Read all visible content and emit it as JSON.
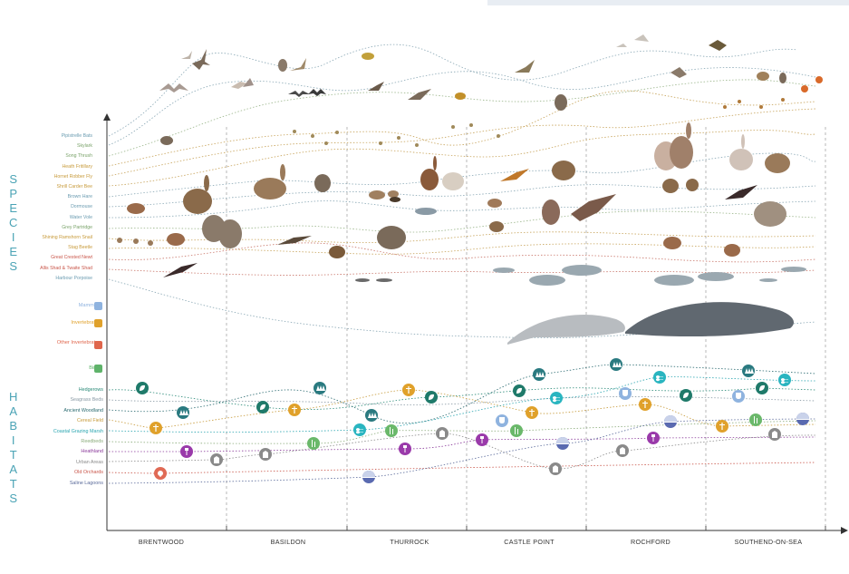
{
  "titles": {
    "species": "SPECIES",
    "habitats": "HABITATS"
  },
  "species_labels": [
    {
      "label": "Pipistrelle Bats",
      "color": "#6a9bb0"
    },
    {
      "label": "Skylark",
      "color": "#7aa36a"
    },
    {
      "label": "Song Thrush",
      "color": "#7aa36a"
    },
    {
      "label": "Heath Fritillary",
      "color": "#c79a3a"
    },
    {
      "label": "Hornet Robber Fly",
      "color": "#c79a3a"
    },
    {
      "label": "Shrill Carder Bee",
      "color": "#c79a3a"
    },
    {
      "label": "Brown Hare",
      "color": "#6a9bb0"
    },
    {
      "label": "Dormouse",
      "color": "#6a9bb0"
    },
    {
      "label": "Water Vole",
      "color": "#6a9bb0"
    },
    {
      "label": "Grey Partridge",
      "color": "#7aa36a"
    },
    {
      "label": "Shining Ramshorn Snail",
      "color": "#c79a3a"
    },
    {
      "label": "Stag Beetle",
      "color": "#c79a3a"
    },
    {
      "label": "Great Crested Newt",
      "color": "#c9564a"
    },
    {
      "label": "Allis Shad & Twaite Shad",
      "color": "#c9564a"
    },
    {
      "label": "Harbour Porpoise",
      "color": "#6a9bb0"
    }
  ],
  "legend": [
    {
      "label": "Mammals",
      "color": "#8fb3df"
    },
    {
      "label": "Invertebrates",
      "color": "#e0a12b"
    },
    {
      "label": "Other Invertebrates",
      "color": "#e0664c"
    },
    {
      "label": "Birds",
      "color": "#5fb36a"
    }
  ],
  "habitat_labels": [
    {
      "label": "Hedgerows",
      "color": "#2a8a78"
    },
    {
      "label": "Seagrass Beds",
      "color": "#8a9aa5"
    },
    {
      "label": "Ancient Woodland",
      "color": "#2a6a70"
    },
    {
      "label": "Cereal Field",
      "color": "#c79a3a"
    },
    {
      "label": "Coastal Grazing Marsh",
      "color": "#2aa5b0"
    },
    {
      "label": "Reedbeds",
      "color": "#8aab7a"
    },
    {
      "label": "Heathland",
      "color": "#8a3a9a"
    },
    {
      "label": "Urban Areas",
      "color": "#8a8a8a"
    },
    {
      "label": "Old Orchards",
      "color": "#c9564a"
    },
    {
      "label": "Saline Lagoons",
      "color": "#5a6a9a"
    }
  ],
  "districts": [
    "BRENTWOOD",
    "BASILDON",
    "THURROCK",
    "CASTLE POINT",
    "ROCHFORD",
    "SOUTHEND-ON-SEA"
  ],
  "habitat_markers": [
    {
      "habitat": "Hedgerows",
      "color": "#1f7a6a",
      "glyph": "leaf",
      "points": [
        [
          157,
          428
        ],
        [
          290,
          449
        ],
        [
          476,
          438
        ],
        [
          573,
          431
        ],
        [
          757,
          436
        ],
        [
          841,
          428
        ]
      ]
    },
    {
      "habitat": "Ancient Woodland",
      "color": "#2a7a80",
      "glyph": "trees",
      "points": [
        [
          202,
          455
        ],
        [
          353,
          428
        ],
        [
          410,
          458
        ],
        [
          595,
          413
        ],
        [
          680,
          402
        ],
        [
          826,
          409
        ]
      ]
    },
    {
      "habitat": "Cereal Field",
      "color": "#e0a12b",
      "glyph": "wheat",
      "points": [
        [
          172,
          472
        ],
        [
          325,
          452
        ],
        [
          451,
          430
        ],
        [
          587,
          455
        ],
        [
          712,
          446
        ],
        [
          797,
          470
        ]
      ]
    },
    {
      "habitat": "Coastal Grazing Marsh",
      "color": "#2ab5c0",
      "glyph": "wave",
      "points": [
        [
          397,
          474
        ],
        [
          614,
          439
        ],
        [
          728,
          416
        ],
        [
          866,
          419
        ]
      ]
    },
    {
      "habitat": "Reedbeds",
      "color": "#6ab86a",
      "glyph": "reed",
      "points": [
        [
          346,
          489
        ],
        [
          432,
          475
        ],
        [
          570,
          475
        ],
        [
          834,
          463
        ]
      ]
    },
    {
      "habitat": "Heathland",
      "color": "#9a3aaa",
      "glyph": "flower",
      "points": [
        [
          206,
          498
        ],
        [
          447,
          495
        ],
        [
          532,
          485
        ],
        [
          721,
          483
        ]
      ]
    },
    {
      "habitat": "Urban Areas",
      "color": "#8a8a8a",
      "glyph": "building",
      "points": [
        [
          239,
          507
        ],
        [
          293,
          501
        ],
        [
          488,
          478
        ],
        [
          613,
          517
        ],
        [
          687,
          497
        ],
        [
          855,
          479
        ]
      ]
    },
    {
      "habitat": "Old Orchards",
      "color": "#e06a55",
      "glyph": "tree",
      "points": [
        [
          177,
          522
        ]
      ]
    },
    {
      "habitat": "Saline Lagoons",
      "color": "#5a6ab0",
      "glyph": "half",
      "points": [
        [
          407,
          526
        ],
        [
          621,
          489
        ],
        [
          740,
          465
        ],
        [
          886,
          462
        ]
      ]
    },
    {
      "habitat": "Seagrass Beds",
      "color": "#8fb3df",
      "glyph": "cup",
      "points": [
        [
          554,
          464
        ],
        [
          690,
          434
        ],
        [
          815,
          437
        ]
      ]
    }
  ]
}
